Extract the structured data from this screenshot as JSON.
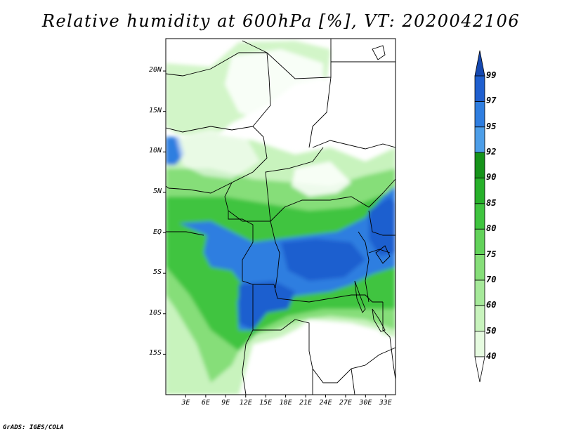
{
  "title": "Relative humidity at 600hPa [%], VT: 2020042106",
  "credit": "GrADS: IGES/COLA",
  "map": {
    "lat_range": [
      -20,
      24
    ],
    "lon_range": [
      0,
      34.5
    ],
    "lat_ticks": [
      {
        "value": 20,
        "label": "20N"
      },
      {
        "value": 15,
        "label": "15N"
      },
      {
        "value": 10,
        "label": "10N"
      },
      {
        "value": 5,
        "label": "5N"
      },
      {
        "value": 0,
        "label": "EQ"
      },
      {
        "value": -5,
        "label": "5S"
      },
      {
        "value": -10,
        "label": "10S"
      },
      {
        "value": -15,
        "label": "15S"
      }
    ],
    "lon_ticks": [
      {
        "value": 3,
        "label": "3E"
      },
      {
        "value": 6,
        "label": "6E"
      },
      {
        "value": 9,
        "label": "9E"
      },
      {
        "value": 12,
        "label": "12E"
      },
      {
        "value": 15,
        "label": "15E"
      },
      {
        "value": 18,
        "label": "18E"
      },
      {
        "value": 21,
        "label": "21E"
      },
      {
        "value": 24,
        "label": "24E"
      },
      {
        "value": 27,
        "label": "27E"
      },
      {
        "value": 30,
        "label": "30E"
      },
      {
        "value": 33,
        "label": "33E"
      }
    ]
  },
  "colorbar": {
    "levels": [
      "40",
      "50",
      "60",
      "70",
      "75",
      "80",
      "85",
      "90",
      "92",
      "95",
      "97",
      "99"
    ],
    "colors": [
      "#ffffff",
      "#e6fbe0",
      "#c8f3bd",
      "#a6e99a",
      "#86de79",
      "#62d25a",
      "#3fc43f",
      "#27b02a",
      "#16931a",
      "#4d9ee8",
      "#2f7ee0",
      "#1f5fcf",
      "#1548b0"
    ]
  }
}
